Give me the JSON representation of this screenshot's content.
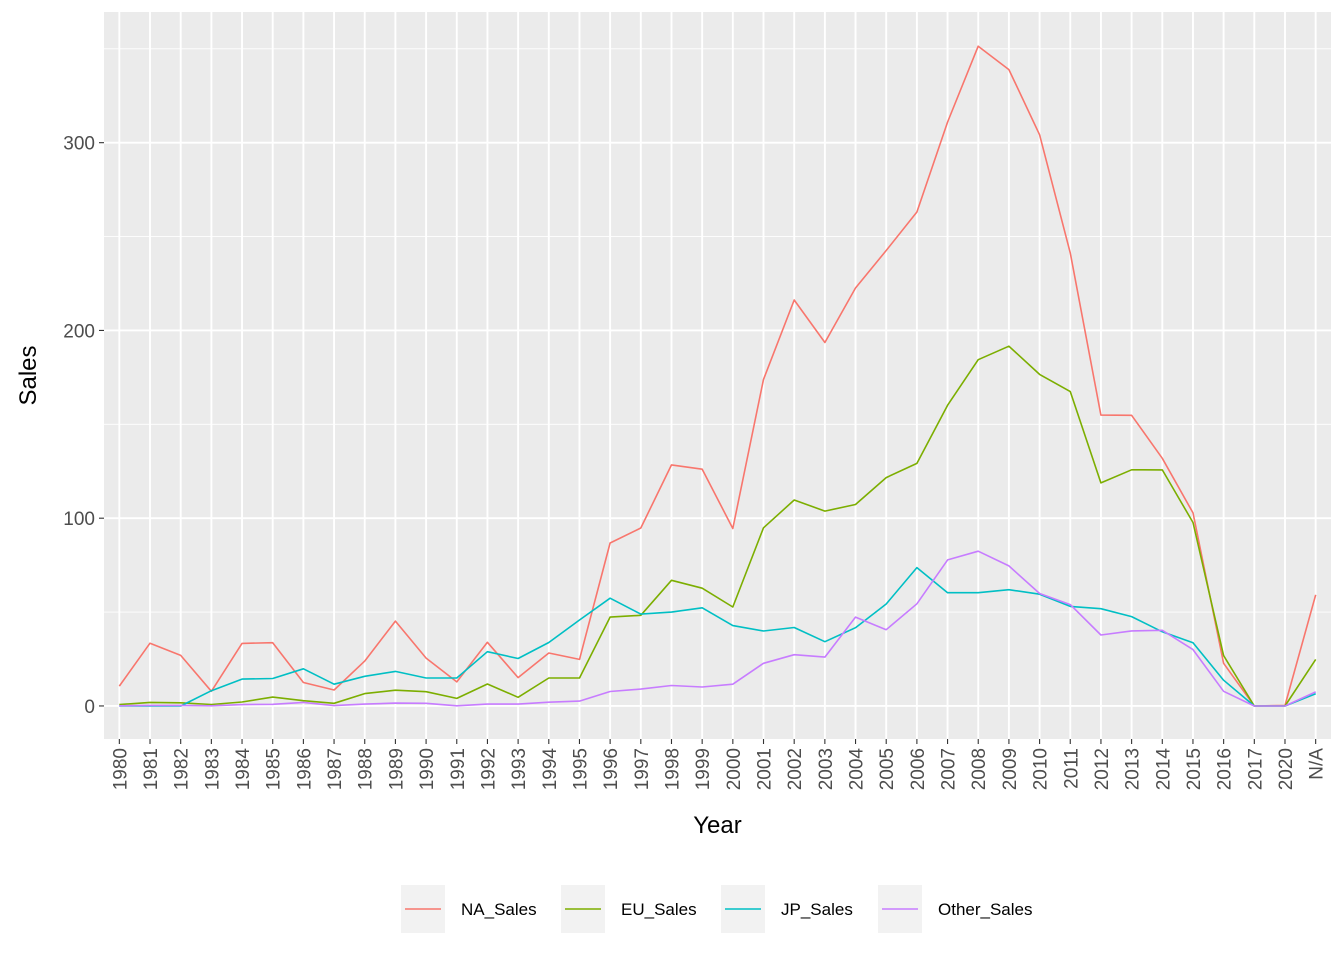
{
  "chart_data": {
    "type": "line",
    "xlabel": "Year",
    "ylabel": "Sales",
    "x": [
      "1980",
      "1981",
      "1982",
      "1983",
      "1984",
      "1985",
      "1986",
      "1987",
      "1988",
      "1989",
      "1990",
      "1991",
      "1992",
      "1993",
      "1994",
      "1995",
      "1996",
      "1997",
      "1998",
      "1999",
      "2000",
      "2001",
      "2002",
      "2003",
      "2004",
      "2005",
      "2006",
      "2007",
      "2008",
      "2009",
      "2010",
      "2011",
      "2012",
      "2013",
      "2014",
      "2015",
      "2016",
      "2017",
      "2020",
      "N/A"
    ],
    "y_ticks": [
      0,
      100,
      200,
      300
    ],
    "ylim": [
      -17.6,
      369.6
    ],
    "grid": true,
    "legend_position": "bottom",
    "series": [
      {
        "name": "NA_Sales",
        "color": "#F8766D",
        "values": [
          10.6,
          33.4,
          26.9,
          7.8,
          33.3,
          33.7,
          12.5,
          8.5,
          23.9,
          45.2,
          25.5,
          12.8,
          33.9,
          15.1,
          28.2,
          24.8,
          86.8,
          94.8,
          128.4,
          126.1,
          94.5,
          173.9,
          216.2,
          193.6,
          222.6,
          242.6,
          263.1,
          311.0,
          351.4,
          338.9,
          304.2,
          241.2,
          154.9,
          154.8,
          131.9,
          102.8,
          22.7,
          0.0,
          0.3,
          59.2
        ]
      },
      {
        "name": "EU_Sales",
        "color": "#7CAE00",
        "values": [
          0.7,
          1.9,
          1.7,
          0.8,
          2.1,
          4.7,
          2.8,
          1.4,
          6.6,
          8.4,
          7.6,
          4.0,
          11.7,
          4.6,
          14.9,
          14.9,
          47.3,
          48.3,
          66.9,
          62.7,
          52.7,
          94.9,
          109.7,
          103.8,
          107.3,
          121.6,
          129.2,
          160.2,
          184.4,
          191.6,
          176.6,
          167.4,
          118.8,
          125.8,
          125.7,
          97.7,
          26.8,
          0.0,
          0.0,
          24.8
        ]
      },
      {
        "name": "JP_Sales",
        "color": "#00BFC4",
        "values": [
          0.0,
          0.0,
          0.0,
          8.1,
          14.3,
          14.6,
          19.8,
          11.6,
          15.8,
          18.4,
          14.9,
          14.9,
          28.9,
          25.3,
          33.8,
          45.8,
          57.4,
          48.9,
          50.0,
          52.3,
          42.8,
          39.9,
          41.8,
          34.2,
          41.7,
          54.3,
          73.7,
          60.3,
          60.3,
          61.9,
          59.5,
          53.0,
          51.8,
          47.6,
          39.5,
          33.7,
          13.7,
          0.0,
          0.0,
          6.5
        ]
      },
      {
        "name": "Other_Sales",
        "color": "#C77CFF",
        "values": [
          0.1,
          0.3,
          0.3,
          0.1,
          0.7,
          0.9,
          1.9,
          0.2,
          1.0,
          1.5,
          1.4,
          0.1,
          1.0,
          1.0,
          2.0,
          2.6,
          7.7,
          9.0,
          10.9,
          10.1,
          11.6,
          22.7,
          27.3,
          26.0,
          47.3,
          40.6,
          54.4,
          77.8,
          82.4,
          74.6,
          59.9,
          54.0,
          37.8,
          40.0,
          40.3,
          30.0,
          7.8,
          0.0,
          0.0,
          7.5
        ]
      }
    ]
  }
}
